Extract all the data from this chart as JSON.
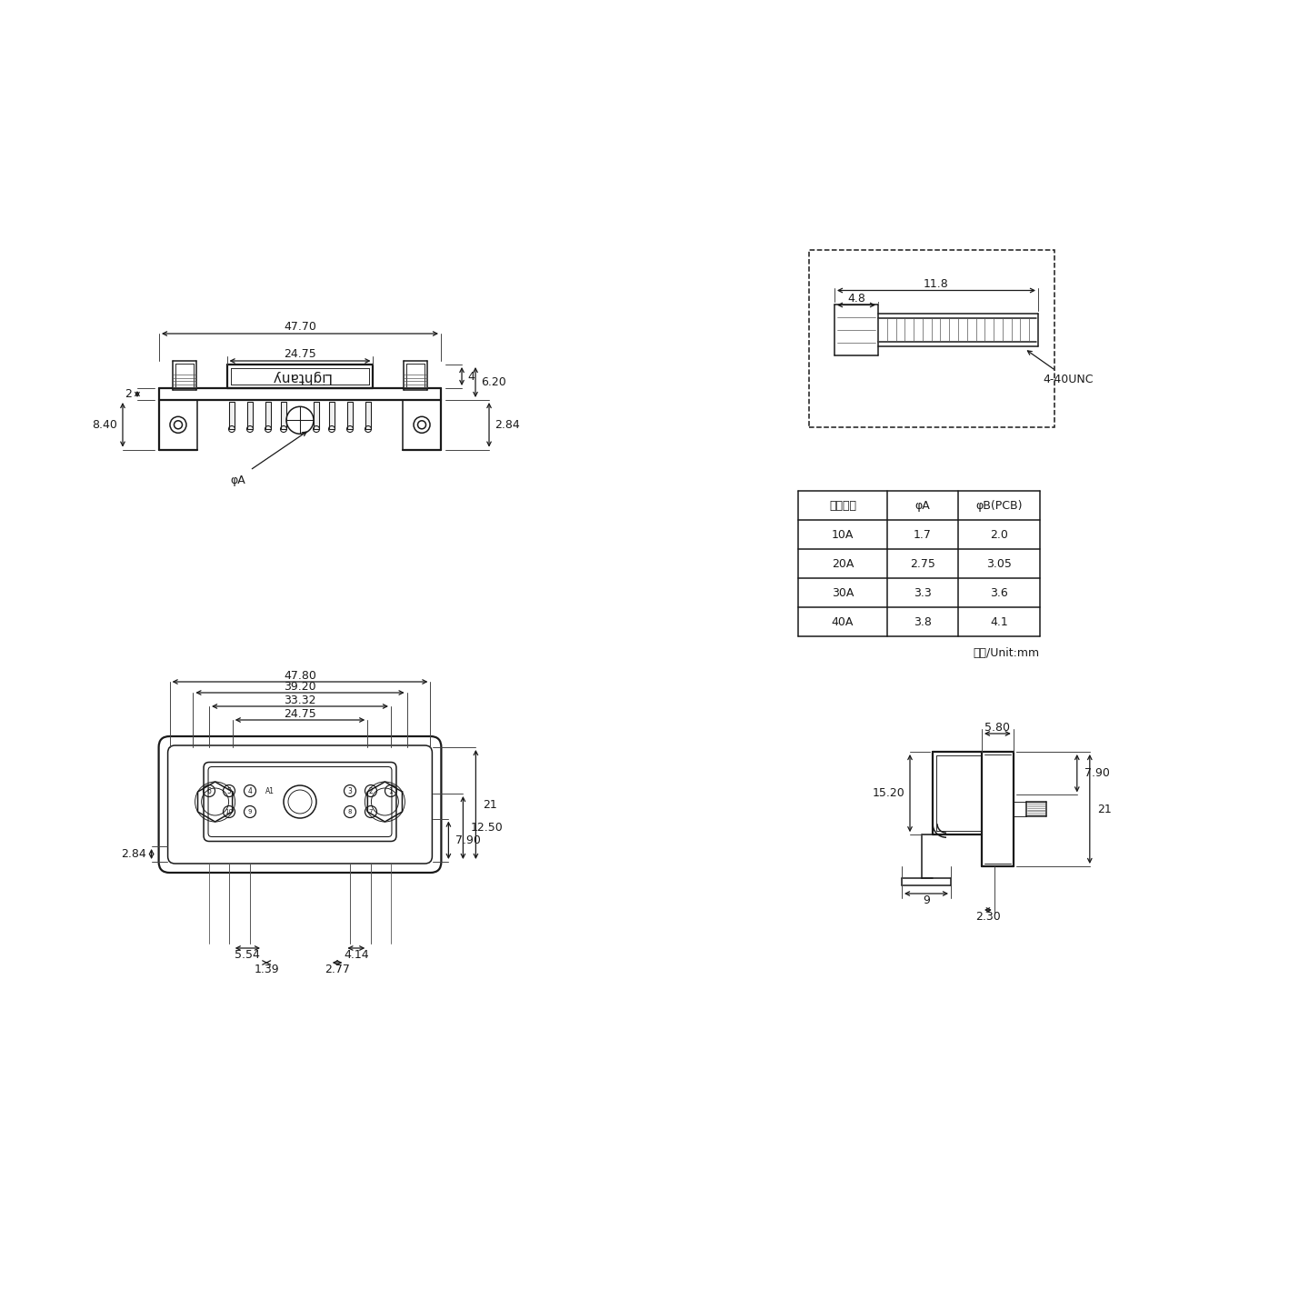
{
  "bg_color": "#ffffff",
  "lc": "#1a1a1a",
  "table_headers": [
    "额定电流",
    "φA",
    "φB(PCB)"
  ],
  "table_rows": [
    [
      "10A",
      "1.7",
      "2.0"
    ],
    [
      "20A",
      "2.75",
      "3.05"
    ],
    [
      "30A",
      "3.3",
      "3.6"
    ],
    [
      "40A",
      "3.8",
      "4.1"
    ]
  ],
  "unit_text": "单位/Unit:mm",
  "screw_label": "4-40UNC",
  "dim_118": "11.8",
  "dim_48": "4.8",
  "lw": 1.1,
  "lw2": 1.6,
  "scale": 6.0,
  "top_dims": {
    "w_total": "47.70",
    "w_center": "24.75",
    "h2": "2",
    "h840": "8.40",
    "h284": "2.84",
    "h4": "4",
    "h620": "6.20",
    "phiA": "φA"
  },
  "front_dims": {
    "w4780": "47.80",
    "w3920": "39.20",
    "w3332": "33.32",
    "w2475": "24.75",
    "h790": "7.90",
    "h1250": "12.50",
    "h21": "21",
    "h284": "2.84",
    "d554": "5.54",
    "d139": "1.39",
    "d414": "4.14",
    "d277": "2.77"
  },
  "side_dims": {
    "w580": "5.80",
    "h21": "21",
    "h790": "7.90",
    "h1520": "15.20",
    "w9": "9",
    "w230": "2.30"
  }
}
